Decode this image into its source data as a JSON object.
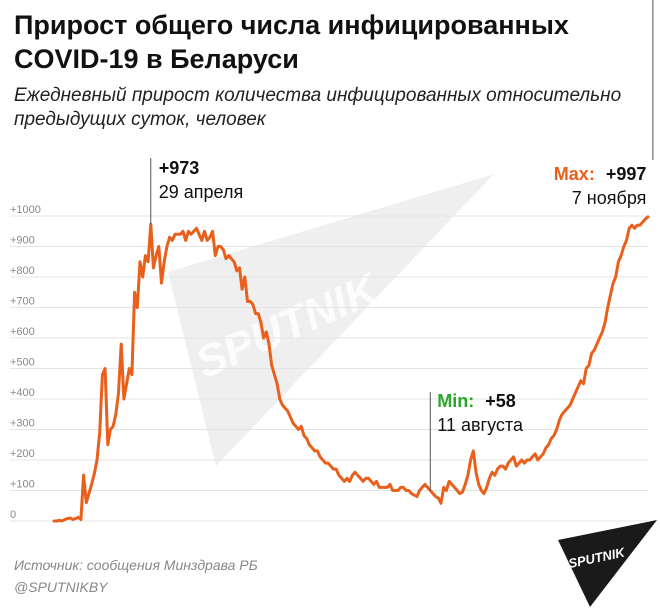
{
  "header": {
    "title": "Прирост общего числа инфицированных COVID-19 в Беларуси",
    "subtitle": "Ежедневный прирост количества инфицированных относительно предыдущих суток, человек"
  },
  "footer": {
    "source": "Источник: сообщения Минздрава РБ",
    "handle": "@SPUTNIKBY"
  },
  "brand": {
    "watermark": "SPUTNIK",
    "logo_text": "SPUTNIK"
  },
  "colors": {
    "line": "#e8601c",
    "max_label": "#e8601c",
    "min_label": "#2ba52b",
    "logo_bg": "#1a1a1a",
    "grid": "#e4e4e4"
  },
  "chart_data": {
    "type": "line",
    "title": "Прирост общего числа инфицированных COVID-19 в Беларуси",
    "subtitle": "Ежедневный прирост количества инфицированных относительно предыдущих суток, человек",
    "xlabel": "",
    "ylabel": "",
    "ylim": [
      0,
      1000
    ],
    "yticks": [
      0,
      100,
      200,
      300,
      400,
      500,
      600,
      700,
      800,
      900,
      1000
    ],
    "ytick_labels": [
      "0",
      "+100",
      "+200",
      "+300",
      "+400",
      "+500",
      "+600",
      "+700",
      "+800",
      "+900",
      "+1000"
    ],
    "grid": true,
    "legend": "none",
    "series": [
      {
        "values": [
          0,
          0,
          2,
          0,
          5,
          8,
          10,
          5,
          8,
          12,
          5,
          150,
          60,
          90,
          120,
          155,
          200,
          290,
          480,
          500,
          250,
          300,
          310,
          350,
          420,
          580,
          400,
          450,
          500,
          480,
          750,
          700,
          850,
          800,
          870,
          850,
          973,
          830,
          870,
          900,
          780,
          850,
          900,
          930,
          920,
          940,
          940,
          940,
          950,
          920,
          950,
          940,
          950,
          960,
          940,
          920,
          950,
          920,
          930,
          950,
          870,
          900,
          900,
          890,
          860,
          870,
          860,
          850,
          820,
          830,
          760,
          800,
          720,
          720,
          710,
          680,
          680,
          650,
          600,
          620,
          580,
          510,
          480,
          450,
          400,
          380,
          370,
          360,
          340,
          320,
          310,
          300,
          310,
          280,
          270,
          250,
          240,
          230,
          230,
          210,
          200,
          190,
          190,
          180,
          170,
          170,
          150,
          140,
          130,
          140,
          130,
          150,
          160,
          150,
          140,
          130,
          140,
          140,
          130,
          120,
          130,
          110,
          110,
          110,
          110,
          120,
          100,
          100,
          100,
          110,
          110,
          100,
          100,
          90,
          85,
          80,
          100,
          110,
          120,
          110,
          100,
          90,
          80,
          75,
          58,
          110,
          100,
          130,
          120,
          110,
          100,
          90,
          95,
          120,
          150,
          200,
          230,
          160,
          120,
          100,
          90,
          110,
          140,
          160,
          150,
          170,
          180,
          180,
          170,
          190,
          200,
          210,
          180,
          190,
          200,
          190,
          200,
          200,
          210,
          220,
          200,
          210,
          220,
          240,
          250,
          270,
          280,
          300,
          330,
          350,
          360,
          370,
          380,
          400,
          420,
          440,
          460,
          450,
          500,
          510,
          550,
          560,
          580,
          600,
          620,
          650,
          700,
          740,
          780,
          800,
          850,
          870,
          900,
          920,
          960,
          970,
          960,
          970,
          970,
          980,
          990,
          997
        ]
      }
    ],
    "annotations": [
      {
        "id": "peak",
        "value_label": "+973",
        "date": "29 апреля",
        "index": 36
      },
      {
        "id": "min",
        "prefix": "Min:",
        "value_label": "+58",
        "date": "11 августа",
        "index": 140
      },
      {
        "id": "max",
        "prefix": "Max:",
        "value_label": "+997",
        "date": "7 ноября",
        "index": 223
      }
    ]
  }
}
